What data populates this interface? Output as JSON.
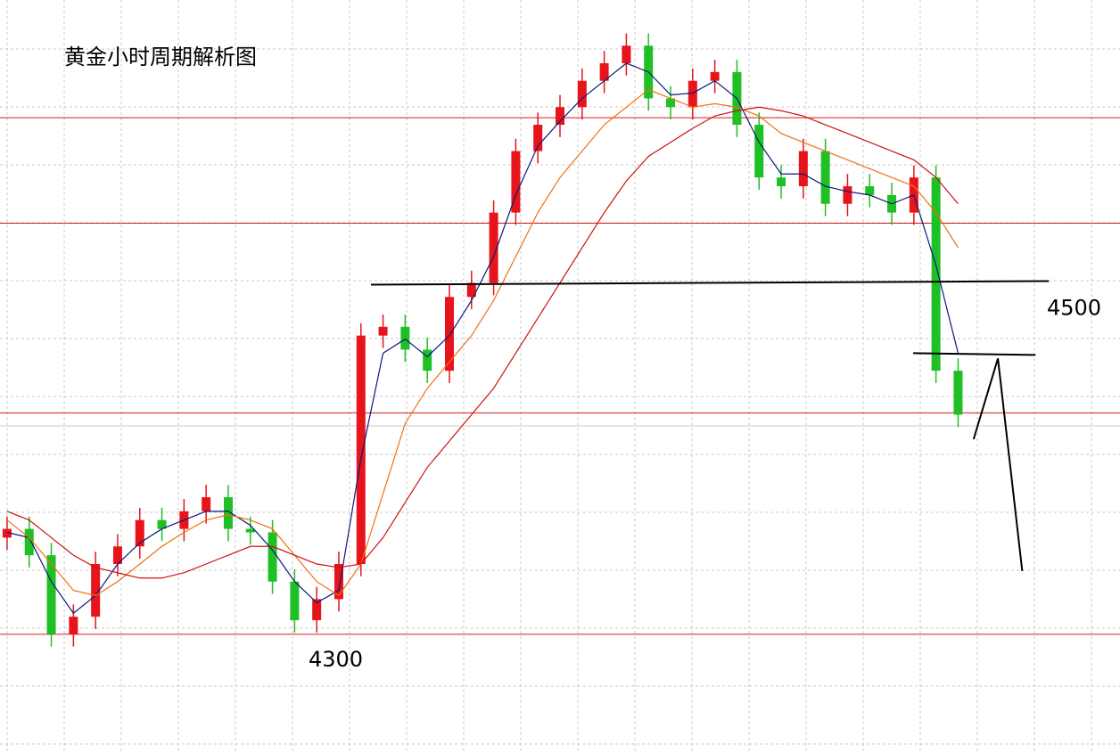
{
  "chart_data": {
    "type": "candlestick",
    "title": "黄金小时周期解析图",
    "ylim": [
      4233,
      4661
    ],
    "xlim": [
      -0.32,
      50.32
    ],
    "up_color": "#e8141b",
    "down_color": "#1fbf26",
    "grid": true,
    "open": [
      4355,
      4360,
      4345,
      4300,
      4310,
      4340,
      4350,
      4365,
      4360,
      4370,
      4378,
      4360,
      4358,
      4330,
      4308,
      4320,
      4340,
      4470,
      4475,
      4462,
      4450,
      4492,
      4500,
      4540,
      4575,
      4590,
      4600,
      4615,
      4625,
      4635,
      4605,
      4600,
      4615,
      4620,
      4590,
      4560,
      4555,
      4575,
      4545,
      4555,
      4550,
      4540,
      4560,
      4450
    ],
    "high": [
      4367,
      4367,
      4352,
      4317,
      4347,
      4357,
      4372,
      4372,
      4377,
      4385,
      4385,
      4367,
      4365,
      4337,
      4327,
      4347,
      4477,
      4482,
      4482,
      4469,
      4499,
      4507,
      4547,
      4582,
      4597,
      4607,
      4622,
      4632,
      4642,
      4642,
      4612,
      4622,
      4627,
      4627,
      4597,
      4567,
      4582,
      4582,
      4562,
      4562,
      4557,
      4567,
      4567,
      4457
    ],
    "low": [
      4348,
      4338,
      4293,
      4293,
      4303,
      4333,
      4343,
      4353,
      4353,
      4363,
      4353,
      4351,
      4323,
      4301,
      4301,
      4313,
      4333,
      4463,
      4455,
      4443,
      4443,
      4485,
      4493,
      4533,
      4568,
      4583,
      4593,
      4608,
      4618,
      4598,
      4593,
      4593,
      4608,
      4583,
      4553,
      4548,
      4548,
      4538,
      4538,
      4543,
      4533,
      4533,
      4443,
      4418
    ],
    "close": [
      4360,
      4345,
      4300,
      4310,
      4340,
      4350,
      4365,
      4360,
      4370,
      4378,
      4360,
      4358,
      4330,
      4308,
      4320,
      4340,
      4470,
      4475,
      4462,
      4450,
      4492,
      4500,
      4540,
      4575,
      4590,
      4600,
      4615,
      4625,
      4635,
      4605,
      4600,
      4615,
      4620,
      4590,
      4560,
      4555,
      4575,
      4545,
      4555,
      4550,
      4540,
      4560,
      4450,
      4425
    ],
    "series": [
      {
        "color": "#0a1a7a",
        "values": [
          4358,
          4355,
          4330,
          4312,
          4322,
          4340,
          4352,
          4360,
          4365,
          4370,
          4370,
          4362,
          4348,
          4330,
          4318,
          4325,
          4400,
          4460,
          4468,
          4458,
          4470,
          4490,
          4515,
          4550,
          4578,
          4592,
          4605,
          4615,
          4625,
          4620,
          4607,
          4608,
          4615,
          4605,
          4580,
          4562,
          4562,
          4555,
          4552,
          4550,
          4545,
          4550,
          4510,
          4460
        ]
      },
      {
        "color": "#f07010",
        "values": [
          4365,
          4355,
          4340,
          4325,
          4322,
          4330,
          4340,
          4350,
          4358,
          4365,
          4368,
          4365,
          4360,
          4345,
          4330,
          4322,
          4340,
          4380,
          4420,
          4440,
          4455,
          4470,
          4490,
          4515,
          4540,
          4560,
          4575,
          4590,
          4600,
          4610,
          4605,
          4600,
          4602,
          4600,
          4595,
          4585,
          4580,
          4575,
          4570,
          4565,
          4560,
          4555,
          4540,
          4520
        ]
      },
      {
        "color": "#d01010",
        "values": [
          4370,
          4365,
          4355,
          4345,
          4338,
          4335,
          4332,
          4332,
          4335,
          4340,
          4345,
          4350,
          4350,
          4345,
          4340,
          4338,
          4340,
          4355,
          4375,
          4395,
          4410,
          4425,
          4440,
          4460,
          4480,
          4500,
          4520,
          4540,
          4558,
          4572,
          4580,
          4588,
          4595,
          4598,
          4600,
          4598,
          4595,
          4590,
          4585,
          4580,
          4575,
          4570,
          4560,
          4545
        ]
      }
    ],
    "levels": [
      4594,
      4534,
      4426,
      4300
    ],
    "level_color": "#d81818",
    "trend_lines": [
      {
        "color": "#000000",
        "x": [
          16.45,
          47.1
        ],
        "y": [
          4499,
          4501
        ]
      },
      {
        "color": "#000000",
        "x": [
          40.97,
          46.5
        ],
        "y": [
          4460,
          4459
        ]
      },
      {
        "color": "#000000",
        "x": [
          43.7,
          44.8,
          45.9
        ],
        "y": [
          4411,
          4457,
          4336
        ]
      }
    ],
    "price_labels": [
      4500,
      4300
    ]
  }
}
